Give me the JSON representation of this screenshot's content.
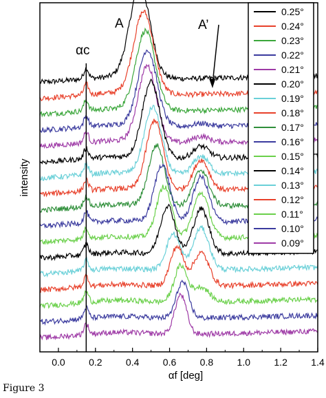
{
  "caption": "Figure 3",
  "chart_data": {
    "type": "line",
    "xlabel": "αf [deg]",
    "ylabel": "intensity",
    "xlim": [
      -0.1,
      1.4
    ],
    "x_ticks": [
      0.0,
      0.2,
      0.4,
      0.6,
      0.8,
      1.0,
      1.2,
      1.4
    ],
    "y_ticks": "none",
    "legend_position": "top-right",
    "annotations": [
      {
        "text": "A",
        "x": 0.33
      },
      {
        "text": "A’",
        "x": 0.77
      },
      {
        "text": "αc",
        "x": 0.15
      }
    ],
    "vertical_line_x": 0.15,
    "series_note": "offset stack, 0.25° on top, 0.09° at bottom",
    "series": [
      {
        "name": "0.25°",
        "color": "#000000",
        "peak_x": 0.44,
        "peak_height": 6.0,
        "side_peak_height": 0.0
      },
      {
        "name": "0.24°",
        "color": "#e8402a",
        "peak_x": 0.46,
        "peak_height": 5.4,
        "side_peak_height": 0.0
      },
      {
        "name": "0.23°",
        "color": "#3aa63a",
        "peak_x": 0.47,
        "peak_height": 5.2,
        "side_peak_height": 0.0
      },
      {
        "name": "0.22°",
        "color": "#3a3a9e",
        "peak_x": 0.48,
        "peak_height": 5.0,
        "side_peak_height": 0.2
      },
      {
        "name": "0.21°",
        "color": "#9e3aa6",
        "peak_x": 0.48,
        "peak_height": 5.0,
        "side_peak_height": 0.4
      },
      {
        "name": "0.20°",
        "color": "#000000",
        "peak_x": 0.5,
        "peak_height": 5.0,
        "side_peak_height": 0.8
      },
      {
        "name": "0.19°",
        "color": "#6ad0d8",
        "peak_x": 0.51,
        "peak_height": 4.4,
        "side_peak_height": 1.2
      },
      {
        "name": "0.18°",
        "color": "#e8402a",
        "peak_x": 0.52,
        "peak_height": 4.6,
        "side_peak_height": 2.0
      },
      {
        "name": "0.17°",
        "color": "#2f8f3a",
        "peak_x": 0.53,
        "peak_height": 4.0,
        "side_peak_height": 2.4
      },
      {
        "name": "0.16°",
        "color": "#3a3a9e",
        "peak_x": 0.56,
        "peak_height": 3.8,
        "side_peak_height": 3.0
      },
      {
        "name": "0.15°",
        "color": "#6ad04a",
        "peak_x": 0.57,
        "peak_height": 3.4,
        "side_peak_height": 3.0
      },
      {
        "name": "0.14°",
        "color": "#000000",
        "peak_x": 0.59,
        "peak_height": 3.2,
        "side_peak_height": 3.0
      },
      {
        "name": "0.13°",
        "color": "#6ad0d8",
        "peak_x": 0.62,
        "peak_height": 2.4,
        "side_peak_height": 2.8
      },
      {
        "name": "0.12°",
        "color": "#e8402a",
        "peak_x": 0.64,
        "peak_height": 2.6,
        "side_peak_height": 2.2
      },
      {
        "name": "0.11°",
        "color": "#6ad04a",
        "peak_x": 0.66,
        "peak_height": 2.4,
        "side_peak_height": 1.0
      },
      {
        "name": "0.10°",
        "color": "#3a3a9e",
        "peak_x": 0.67,
        "peak_height": 2.4,
        "side_peak_height": 0.0
      },
      {
        "name": "0.09°",
        "color": "#9e3aa6",
        "peak_x": 0.66,
        "peak_height": 2.6,
        "side_peak_height": 0.0
      }
    ]
  }
}
